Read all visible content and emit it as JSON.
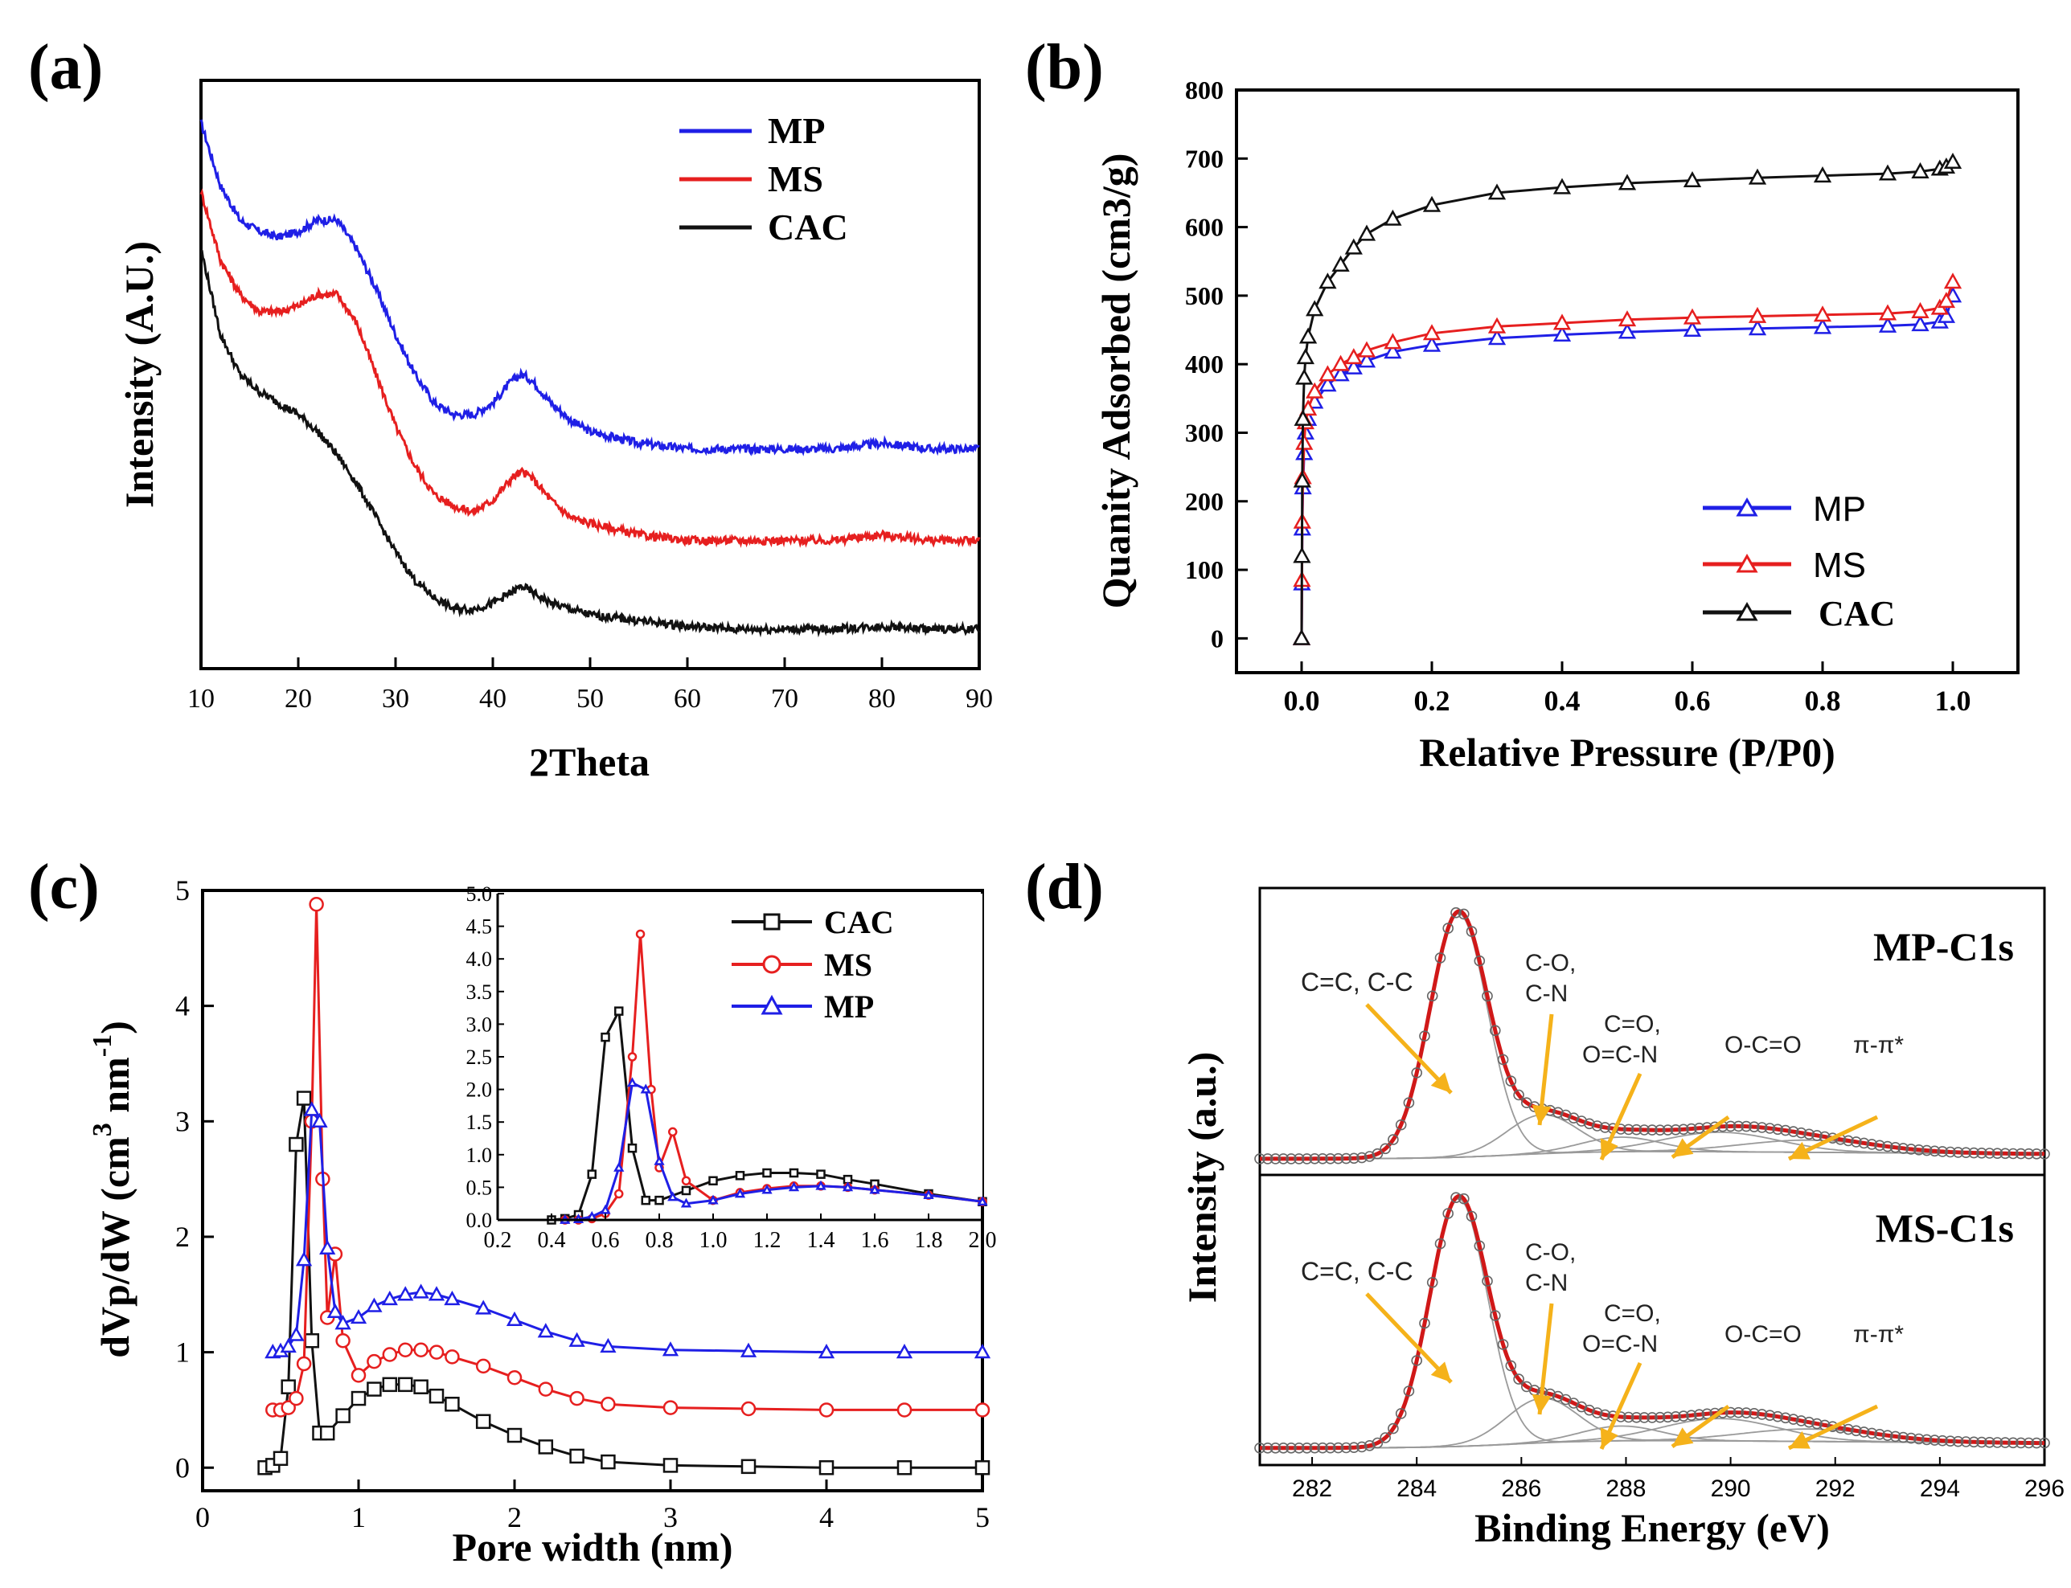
{
  "colors": {
    "mp": "#1f1fe6",
    "ms": "#e61f1f",
    "cac": "#111111",
    "fit": "#d01818",
    "arrow": "#f5b21a",
    "component": "#9a9a9a"
  },
  "chart_data": [
    {
      "panel_label": "(a)",
      "type": "line",
      "title": "",
      "xlabel": "2Theta",
      "ylabel": "Intensity (A.U.)",
      "xlim": [
        10,
        90
      ],
      "xticks": [
        "10",
        "20",
        "30",
        "40",
        "50",
        "60",
        "70",
        "80",
        "90"
      ],
      "yticks": [],
      "legend_position": "top-right",
      "series": [
        {
          "name": "MP",
          "color": "#1f1fe6",
          "x": [
            10,
            12,
            14,
            16,
            18,
            20,
            22,
            24,
            26,
            28,
            30,
            32,
            34,
            36,
            38,
            40,
            42,
            43,
            44,
            46,
            48,
            50,
            55,
            60,
            65,
            70,
            75,
            80,
            85,
            90
          ],
          "y": [
            94,
            83,
            77,
            75,
            74,
            75,
            77,
            77,
            72,
            65,
            57,
            50,
            45,
            43,
            43,
            45,
            49,
            50,
            49,
            45,
            42,
            40,
            38,
            37,
            37,
            37,
            37,
            38,
            37,
            37
          ]
        },
        {
          "name": "MS",
          "color": "#e61f1f",
          "x": [
            10,
            12,
            14,
            16,
            18,
            20,
            22,
            24,
            26,
            28,
            30,
            32,
            34,
            36,
            38,
            40,
            42,
            43,
            44,
            46,
            48,
            50,
            55,
            60,
            65,
            70,
            75,
            80,
            85,
            90
          ],
          "y": [
            82,
            70,
            64,
            61,
            61,
            62,
            64,
            64,
            59,
            50,
            41,
            34,
            29,
            27,
            26,
            28,
            32,
            33,
            32,
            28,
            25,
            24,
            22,
            21,
            21,
            21,
            21,
            22,
            21,
            21
          ]
        },
        {
          "name": "CAC",
          "color": "#111111",
          "x": [
            10,
            12,
            14,
            16,
            18,
            20,
            22,
            24,
            26,
            28,
            30,
            32,
            34,
            36,
            38,
            40,
            42,
            43,
            44,
            46,
            48,
            50,
            55,
            60,
            65,
            70,
            75,
            80,
            85,
            90
          ],
          "y": [
            72,
            57,
            50,
            47,
            45,
            43,
            40,
            36,
            31,
            25,
            19,
            14,
            11,
            9,
            9,
            10,
            12,
            13,
            12,
            10,
            9,
            8,
            7,
            6,
            5.5,
            5.5,
            5.5,
            6,
            5.5,
            5.5
          ]
        }
      ]
    },
    {
      "panel_label": "(b)",
      "type": "scatter",
      "title": "",
      "xlabel": "Relative Pressure (P/P0)",
      "ylabel": "Quanity Adsorbed (cm3/g)",
      "xlim": [
        -0.1,
        1.1
      ],
      "ylim": [
        -50,
        800
      ],
      "xticks": [
        "0.0",
        "0.2",
        "0.4",
        "0.6",
        "0.8",
        "1.0"
      ],
      "yticks": [
        "0",
        "100",
        "200",
        "300",
        "400",
        "500",
        "600",
        "700",
        "800"
      ],
      "legend_position": "bottom-right",
      "series": [
        {
          "name": "MP",
          "color": "#1f1fe6",
          "x": [
            0.0,
            0.0005,
            0.001,
            0.002,
            0.004,
            0.006,
            0.01,
            0.02,
            0.04,
            0.06,
            0.08,
            0.1,
            0.14,
            0.2,
            0.3,
            0.4,
            0.5,
            0.6,
            0.7,
            0.8,
            0.9,
            0.95,
            0.98,
            0.99,
            1.0
          ],
          "y": [
            0,
            80,
            160,
            220,
            270,
            300,
            320,
            345,
            370,
            385,
            395,
            405,
            418,
            428,
            438,
            443,
            447,
            450,
            452,
            454,
            456,
            458,
            462,
            470,
            500
          ]
        },
        {
          "name": "MS",
          "color": "#e61f1f",
          "x": [
            0.0,
            0.0005,
            0.001,
            0.002,
            0.004,
            0.006,
            0.01,
            0.02,
            0.04,
            0.06,
            0.08,
            0.1,
            0.14,
            0.2,
            0.3,
            0.4,
            0.5,
            0.6,
            0.7,
            0.8,
            0.9,
            0.95,
            0.98,
            0.99,
            1.0
          ],
          "y": [
            0,
            85,
            170,
            235,
            285,
            315,
            335,
            360,
            385,
            400,
            410,
            420,
            432,
            445,
            455,
            460,
            465,
            468,
            470,
            472,
            474,
            477,
            482,
            492,
            520
          ]
        },
        {
          "name": "CAC",
          "color": "#111111",
          "x": [
            0.0,
            0.0005,
            0.001,
            0.002,
            0.004,
            0.006,
            0.01,
            0.02,
            0.04,
            0.06,
            0.08,
            0.1,
            0.14,
            0.2,
            0.3,
            0.4,
            0.5,
            0.6,
            0.7,
            0.8,
            0.9,
            0.95,
            0.98,
            0.99,
            1.0
          ],
          "y": [
            0,
            120,
            230,
            320,
            380,
            410,
            440,
            480,
            520,
            545,
            570,
            590,
            612,
            632,
            650,
            658,
            664,
            668,
            672,
            675,
            678,
            681,
            685,
            688,
            695
          ]
        }
      ]
    },
    {
      "panel_label": "(c)",
      "type": "line",
      "title": "",
      "xlabel": "Pore width (nm)",
      "ylabel": "dVp/dW (cm3 nm-1)",
      "ylabel_parts": {
        "main": "dVp/dW (cm",
        "sup1": "3",
        "mid": " nm",
        "sup2": "-1",
        "end": ")"
      },
      "xlim": [
        0,
        5
      ],
      "ylim": [
        -0.2,
        5
      ],
      "xticks": [
        "0",
        "1",
        "2",
        "3",
        "4",
        "5"
      ],
      "yticks": [
        "0",
        "1",
        "2",
        "3",
        "4",
        "5"
      ],
      "legend_position": "top-right",
      "series": [
        {
          "name": "CAC",
          "color": "#111111",
          "marker": "square",
          "offset": 0,
          "x": [
            0.4,
            0.45,
            0.5,
            0.55,
            0.6,
            0.65,
            0.7,
            0.75,
            0.8,
            0.9,
            1.0,
            1.1,
            1.2,
            1.3,
            1.4,
            1.5,
            1.6,
            1.8,
            2.0,
            2.2,
            2.4,
            2.6,
            3.0,
            3.5,
            4.0,
            4.5,
            5.0
          ],
          "y": [
            0,
            0.02,
            0.08,
            0.7,
            2.8,
            3.2,
            1.1,
            0.3,
            0.3,
            0.45,
            0.6,
            0.68,
            0.72,
            0.72,
            0.7,
            0.62,
            0.55,
            0.4,
            0.28,
            0.18,
            0.1,
            0.05,
            0.02,
            0.01,
            0,
            0,
            0
          ]
        },
        {
          "name": "MS",
          "color": "#e61f1f",
          "marker": "circle",
          "offset": 0.5,
          "x": [
            0.45,
            0.5,
            0.55,
            0.6,
            0.65,
            0.7,
            0.73,
            0.77,
            0.8,
            0.85,
            0.9,
            1.0,
            1.1,
            1.2,
            1.3,
            1.4,
            1.5,
            1.6,
            1.8,
            2.0,
            2.2,
            2.4,
            2.6,
            3.0,
            3.5,
            4.0,
            4.5,
            5.0
          ],
          "y": [
            0,
            0,
            0.02,
            0.1,
            0.4,
            2.5,
            4.38,
            2.0,
            0.8,
            1.35,
            0.6,
            0.3,
            0.42,
            0.48,
            0.52,
            0.52,
            0.5,
            0.46,
            0.38,
            0.28,
            0.18,
            0.1,
            0.05,
            0.02,
            0.01,
            0,
            0,
            0
          ]
        },
        {
          "name": "MP",
          "color": "#1f1fe6",
          "marker": "triangle",
          "offset": 1.0,
          "x": [
            0.45,
            0.5,
            0.55,
            0.6,
            0.65,
            0.7,
            0.75,
            0.8,
            0.85,
            0.9,
            1.0,
            1.1,
            1.2,
            1.3,
            1.4,
            1.5,
            1.6,
            1.8,
            2.0,
            2.2,
            2.4,
            2.6,
            3.0,
            3.5,
            4.0,
            4.5,
            5.0
          ],
          "y": [
            0,
            0.01,
            0.05,
            0.15,
            0.8,
            2.1,
            2.0,
            0.9,
            0.35,
            0.25,
            0.3,
            0.4,
            0.46,
            0.5,
            0.52,
            0.5,
            0.46,
            0.38,
            0.28,
            0.18,
            0.1,
            0.05,
            0.02,
            0.01,
            0,
            0,
            0
          ]
        }
      ],
      "inset": {
        "xlim": [
          0.2,
          2.0
        ],
        "ylim": [
          0,
          5.0
        ],
        "xticks": [
          "0.2",
          "0.4",
          "0.6",
          "0.8",
          "1.0",
          "1.2",
          "1.4",
          "1.6",
          "1.8",
          "2.0"
        ],
        "yticks": [
          "0.0",
          "0.5",
          "1.0",
          "1.5",
          "2.0",
          "2.5",
          "3.0",
          "3.5",
          "4.0",
          "4.5",
          "5.0"
        ]
      }
    },
    {
      "panel_label": "(d)",
      "type": "line",
      "title": "",
      "xlabel": "Binding Energy (eV)",
      "ylabel": "Intensity (a.u.)",
      "xlim": [
        281,
        296
      ],
      "xticks": [
        "282",
        "284",
        "286",
        "288",
        "290",
        "292",
        "294",
        "296"
      ],
      "subplots": [
        {
          "label": "MP-C1s",
          "annotations": [
            "C=C, C-C",
            "C-O,",
            "C-N",
            "C=O,",
            "O=C-N",
            "O-C=O",
            "π-π*"
          ],
          "peaks": [
            {
              "assignment": "C=C, C-C",
              "center": 284.8,
              "height": 1.0,
              "fwhm": 1.3
            },
            {
              "assignment": "C-O, C-N",
              "center": 286.4,
              "height": 0.16,
              "fwhm": 1.6
            },
            {
              "assignment": "C=O, O=C-N",
              "center": 287.9,
              "height": 0.06,
              "fwhm": 1.8
            },
            {
              "assignment": "O-C=O",
              "center": 289.8,
              "height": 0.08,
              "fwhm": 2.6
            },
            {
              "assignment": "π-π*",
              "center": 291.5,
              "height": 0.05,
              "fwhm": 3.0
            }
          ]
        },
        {
          "label": "MS-C1s",
          "annotations": [
            "C=C, C-C",
            "C-O,",
            "C-N",
            "C=O,",
            "O=C-N",
            "O-C=O",
            "π-π*"
          ],
          "peaks": [
            {
              "assignment": "C=C, C-C",
              "center": 284.8,
              "height": 1.0,
              "fwhm": 1.3
            },
            {
              "assignment": "C-O, C-N",
              "center": 286.4,
              "height": 0.18,
              "fwhm": 1.6
            },
            {
              "assignment": "C=O, O=C-N",
              "center": 287.9,
              "height": 0.06,
              "fwhm": 1.8
            },
            {
              "assignment": "O-C=O",
              "center": 289.8,
              "height": 0.09,
              "fwhm": 2.6
            },
            {
              "assignment": "π-π*",
              "center": 291.5,
              "height": 0.05,
              "fwhm": 3.0
            }
          ]
        }
      ]
    }
  ]
}
